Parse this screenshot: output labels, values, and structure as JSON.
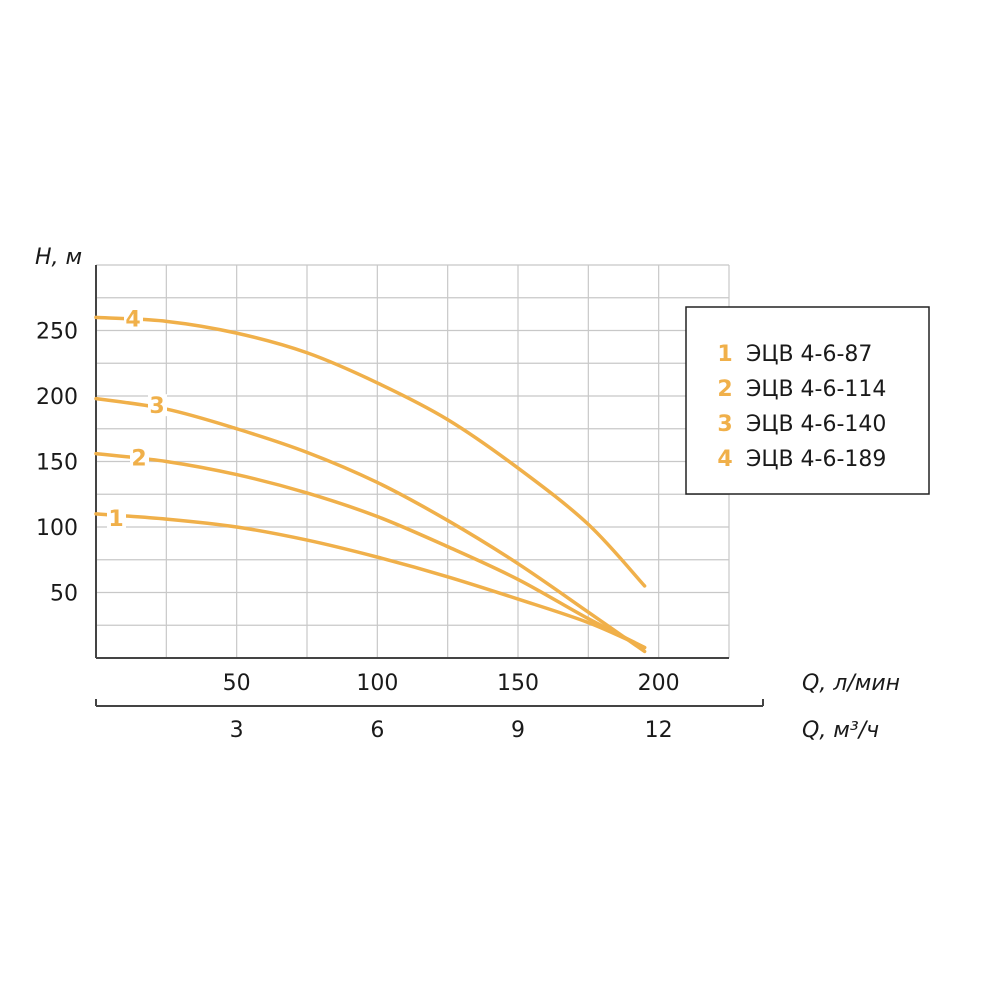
{
  "chart_data": {
    "type": "line",
    "x_unit_label": "Q, л/мин",
    "x2_unit_label": "Q, м³/ч",
    "y_unit_label": "H, м",
    "xlim": [
      0,
      225
    ],
    "ylim": [
      0,
      300
    ],
    "x_ticks": [
      "50",
      "100",
      "150",
      "200"
    ],
    "x2_ticks": [
      "3",
      "6",
      "9",
      "12"
    ],
    "y_ticks": [
      "50",
      "100",
      "150",
      "200",
      "250"
    ],
    "grid": true,
    "legend_position": "right",
    "series_color": "#f0b04a",
    "series": [
      {
        "id": "1",
        "name": "ЭЦВ 4-6-87",
        "x": [
          0,
          25,
          50,
          75,
          100,
          125,
          150,
          175,
          195
        ],
        "y": [
          110,
          106,
          100,
          90,
          77,
          62,
          45,
          27,
          8
        ]
      },
      {
        "id": "2",
        "name": "ЭЦВ 4-6-114",
        "x": [
          0,
          25,
          50,
          75,
          100,
          125,
          150,
          175,
          195
        ],
        "y": [
          156,
          150,
          140,
          126,
          108,
          85,
          60,
          30,
          8
        ]
      },
      {
        "id": "3",
        "name": "ЭЦВ 4-6-140",
        "x": [
          0,
          25,
          50,
          75,
          100,
          125,
          150,
          175,
          195
        ],
        "y": [
          198,
          190,
          175,
          157,
          134,
          105,
          72,
          35,
          5
        ]
      },
      {
        "id": "4",
        "name": "ЭЦВ 4-6-189",
        "x": [
          0,
          25,
          50,
          75,
          100,
          125,
          150,
          175,
          195
        ],
        "y": [
          260,
          257,
          248,
          233,
          210,
          182,
          145,
          102,
          55
        ]
      }
    ]
  }
}
